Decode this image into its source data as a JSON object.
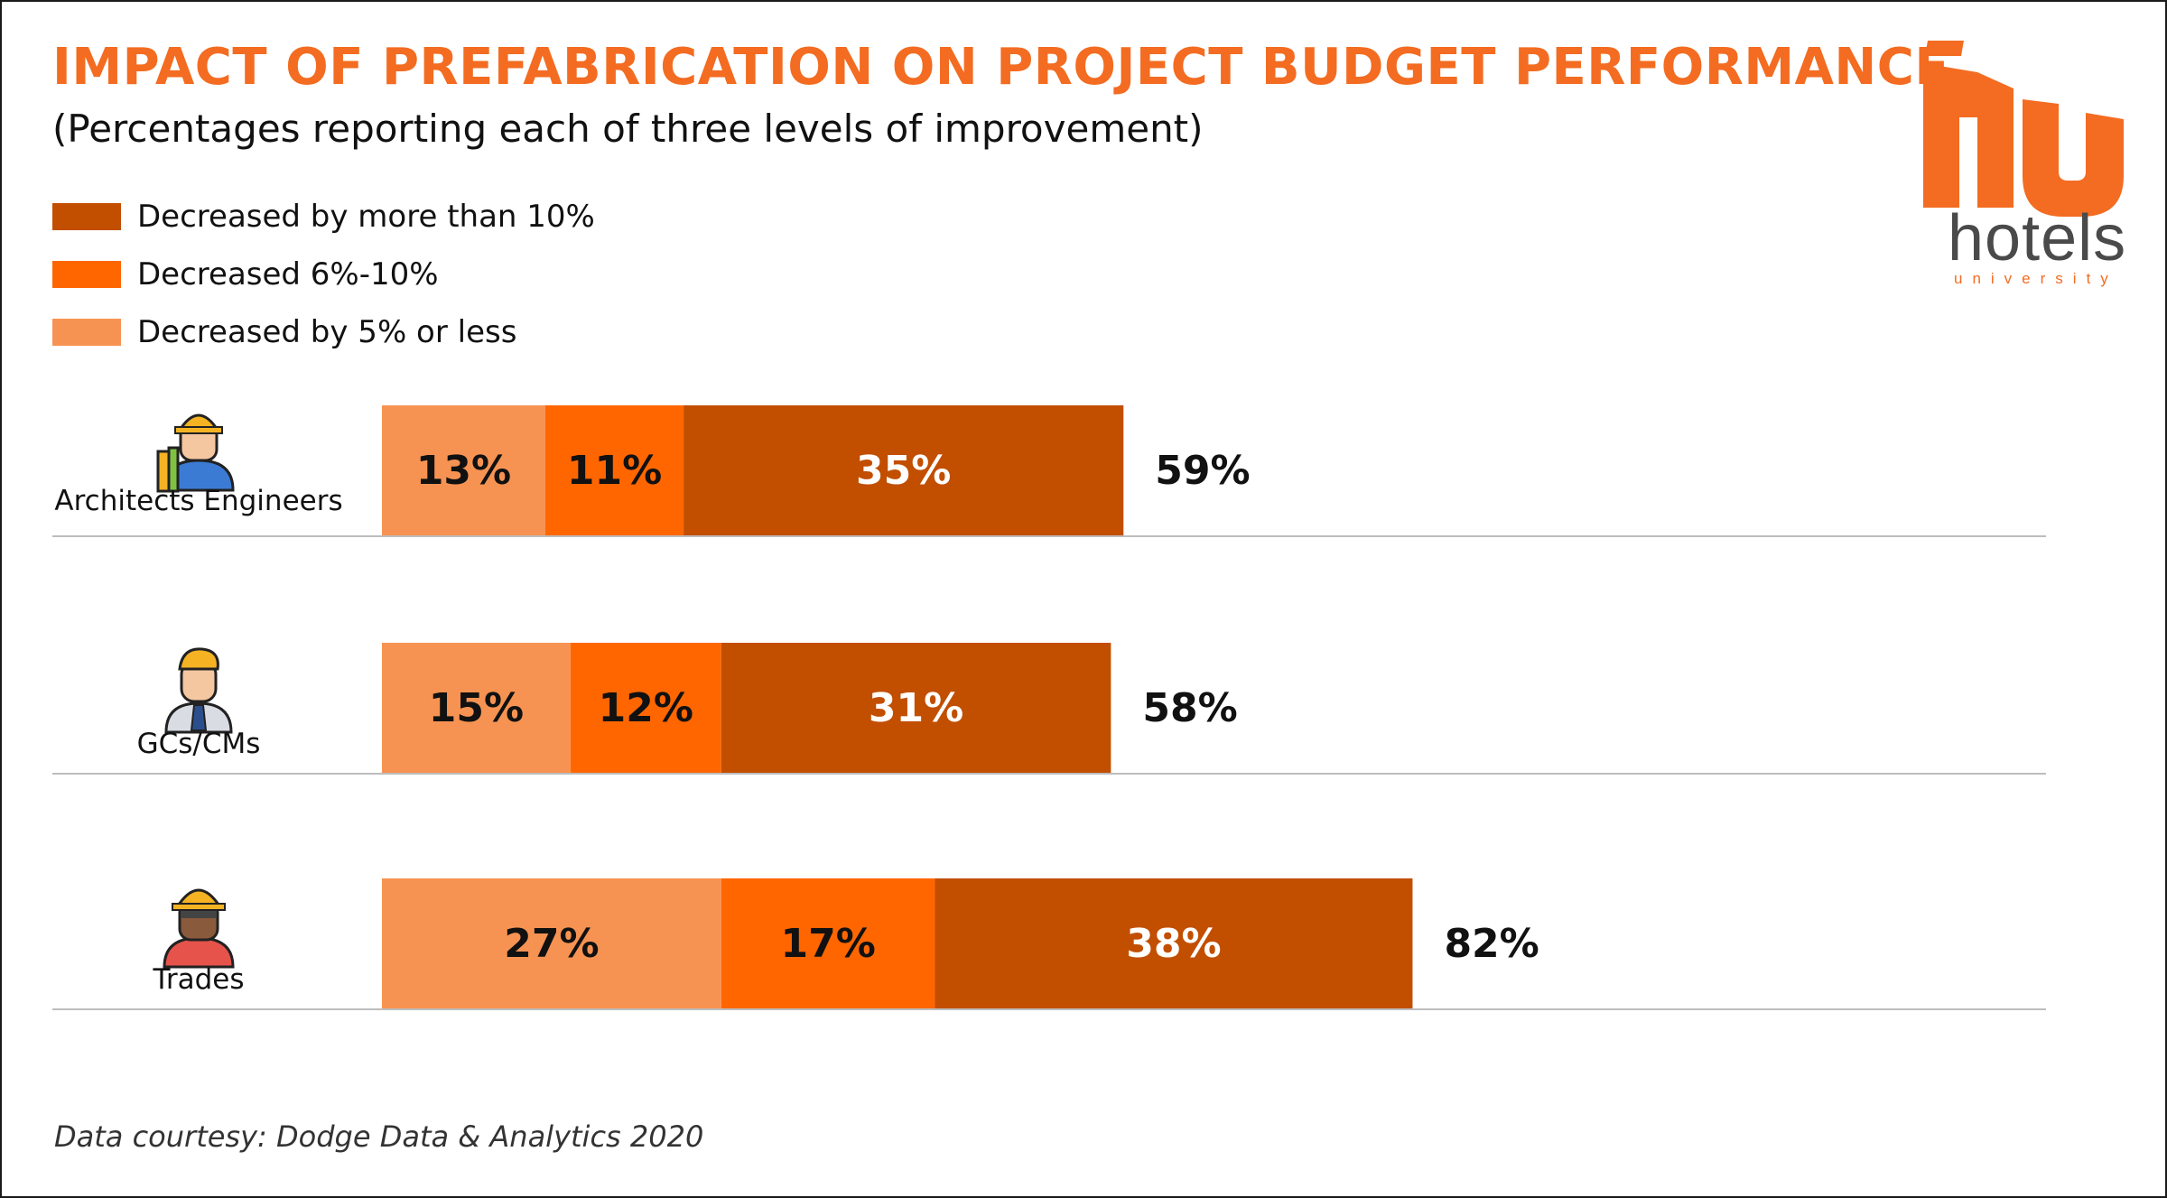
{
  "header": {
    "title": "IMPACT OF PREFABRICATION ON PROJECT BUDGET PERFORMANCE",
    "subtitle": "(Percentages reporting each of three levels of improvement)"
  },
  "legend": [
    {
      "label": "Decreased by more than 10%",
      "color": "#c24e00"
    },
    {
      "label": "Decreased 6%-10%",
      "color": "#ff6600"
    },
    {
      "label": "Decreased by 5% or less",
      "color": "#f79352"
    }
  ],
  "logo": {
    "word": "hotels",
    "sub": "university",
    "color": "#f36c21"
  },
  "source": "Data courtesy: Dodge Data & Analytics 2020",
  "chart_data": {
    "type": "bar",
    "orientation": "horizontal",
    "stacked": true,
    "categories": [
      "Architects Engineers",
      "GCs/CMs",
      "Trades"
    ],
    "category_icons": [
      "engineer-icon",
      "manager-icon",
      "tradesperson-icon"
    ],
    "series": [
      {
        "name": "Decreased by 5% or less",
        "values": [
          13,
          15,
          27
        ],
        "labels": [
          "13%",
          "15%",
          "27%"
        ],
        "color": "#f79352"
      },
      {
        "name": "Decreased 6%-10%",
        "values": [
          11,
          12,
          17
        ],
        "labels": [
          "11%",
          "12%",
          "17%"
        ],
        "color": "#ff6600"
      },
      {
        "name": "Decreased by more than 10%",
        "values": [
          35,
          31,
          38
        ],
        "labels": [
          "35%",
          "31%",
          "38%"
        ],
        "color": "#c24e00"
      }
    ],
    "totals": [
      59,
      58,
      82
    ],
    "total_labels": [
      "59%",
      "58%",
      "82%"
    ],
    "grid": false,
    "legend_position": "top-left"
  }
}
